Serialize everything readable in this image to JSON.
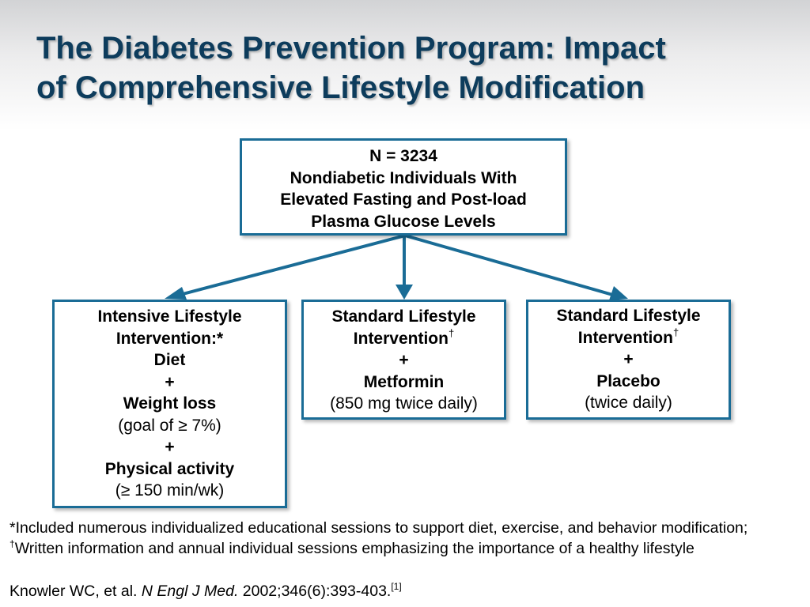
{
  "title": {
    "line1": "The Diabetes Prevention Program: Impact",
    "line2": "of Comprehensive Lifestyle Modification"
  },
  "top_box": {
    "lines": [
      "N = 3234",
      "Nondiabetic Individuals With",
      "Elevated Fasting and Post-load",
      "Plasma Glucose Levels"
    ]
  },
  "arms": {
    "intensive": {
      "line1": "Intensive Lifestyle",
      "line2": "Intervention:*",
      "line3": "Diet",
      "plus1": "+",
      "line4": "Weight loss",
      "line5": "(goal of ≥ 7%)",
      "plus2": "+",
      "line6": "Physical activity",
      "line7": "(≥ 150 min/wk)"
    },
    "metformin": {
      "line1": "Standard Lifestyle",
      "line2": "Intervention",
      "dagger": "†",
      "plus": "+",
      "line3": "Metformin",
      "line4": "(850 mg twice daily)"
    },
    "placebo": {
      "line1": "Standard Lifestyle",
      "line2": "Intervention",
      "dagger": "†",
      "plus": "+",
      "line3": "Placebo",
      "line4": "(twice daily)"
    }
  },
  "footnote": {
    "part1": "*Included  numerous individualized   educational sessions to support diet, exercise, and behavior modification; ",
    "dagger": "†",
    "part2": "Written information and annual individual  sessions emphasizing the importance of a healthy lifestyle"
  },
  "citation": {
    "authors": "Knowler WC, et al. ",
    "journal": "N Engl J Med.",
    "details": " 2002;346(6):393-403.",
    "ref": "[1]"
  },
  "colors": {
    "title": "#0d3c5c",
    "box_border": "#1a6c96",
    "arrow": "#1a6c96"
  }
}
